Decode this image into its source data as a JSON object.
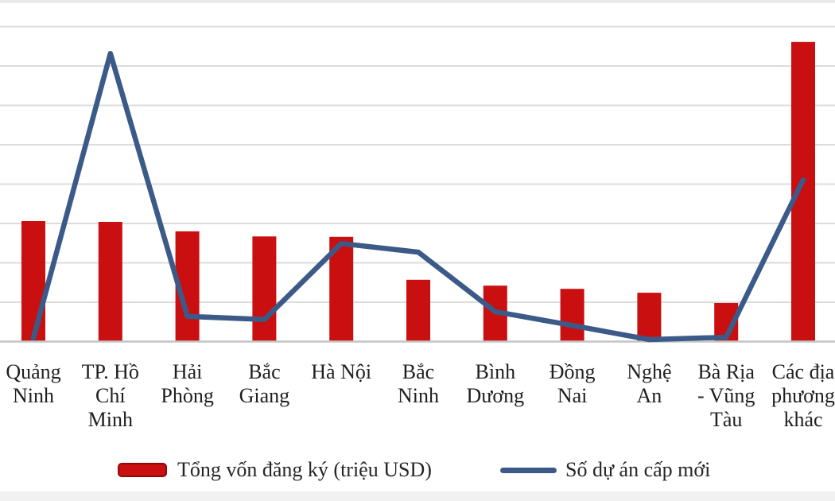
{
  "chart_data": {
    "type": "bar",
    "combo": "bar+line",
    "title": "",
    "xlabel": "",
    "ylabel": "",
    "categories": [
      "Quảng Ninh",
      "TP. Hồ Chí Minh",
      "Hải Phòng",
      "Bắc Giang",
      "Hà Nội",
      "Bắc Ninh",
      "Bình Dương",
      "Đồng Nai",
      "Nghệ An",
      "Bà Rịa - Vũng Tàu",
      "Các địa phương khác"
    ],
    "category_label_lines": [
      [
        "Quảng",
        "Ninh"
      ],
      [
        "TP. Hồ",
        "Chí",
        "Minh"
      ],
      [
        "Hải",
        "Phòng"
      ],
      [
        "Bắc",
        "Giang"
      ],
      [
        "Hà Nội"
      ],
      [
        "Bắc",
        "Ninh"
      ],
      [
        "Bình",
        "Dương"
      ],
      [
        "Đồng",
        "Nai"
      ],
      [
        "Nghệ",
        "An"
      ],
      [
        "Bà Rịa",
        "- Vũng",
        "Tàu"
      ],
      [
        "Các địa",
        "phương",
        "khác"
      ]
    ],
    "series": [
      {
        "name": "Tổng vốn đăng ký (triệu USD)",
        "type": "bar",
        "color": "#c90f0f",
        "values": [
          3.06,
          3.04,
          2.8,
          2.67,
          2.66,
          1.57,
          1.42,
          1.34,
          1.24,
          0.98,
          7.61
        ]
      },
      {
        "name": "Số dự án cấp mới",
        "type": "line",
        "color": "#3c5a88",
        "values": [
          0.09,
          7.32,
          0.64,
          0.56,
          2.49,
          2.27,
          0.76,
          0.41,
          0.05,
          0.11,
          4.11
        ]
      }
    ],
    "ylim": [
      0,
      8.62
    ],
    "y_axis_note": "y-axis tick labels are not visible in the image (cropped); values are in gridline units, one horizontal gridline interval = 1 unit",
    "grid": "horizontal",
    "gridline_count": 8,
    "legend_position": "bottom",
    "colors": {
      "bar": "#c90f0f",
      "bar_border": "#8f0a0a",
      "line": "#3c5a88",
      "gridline": "#dcdcdc",
      "axis_line": "#c4c4c4",
      "label_text": "#1f1f1f",
      "legend_text": "#262626",
      "bottom_band": "#f2f1f2"
    }
  },
  "legend": {
    "bar_label": "Tổng vốn đăng ký (triệu USD)",
    "line_label": "Số dự án cấp mới"
  }
}
